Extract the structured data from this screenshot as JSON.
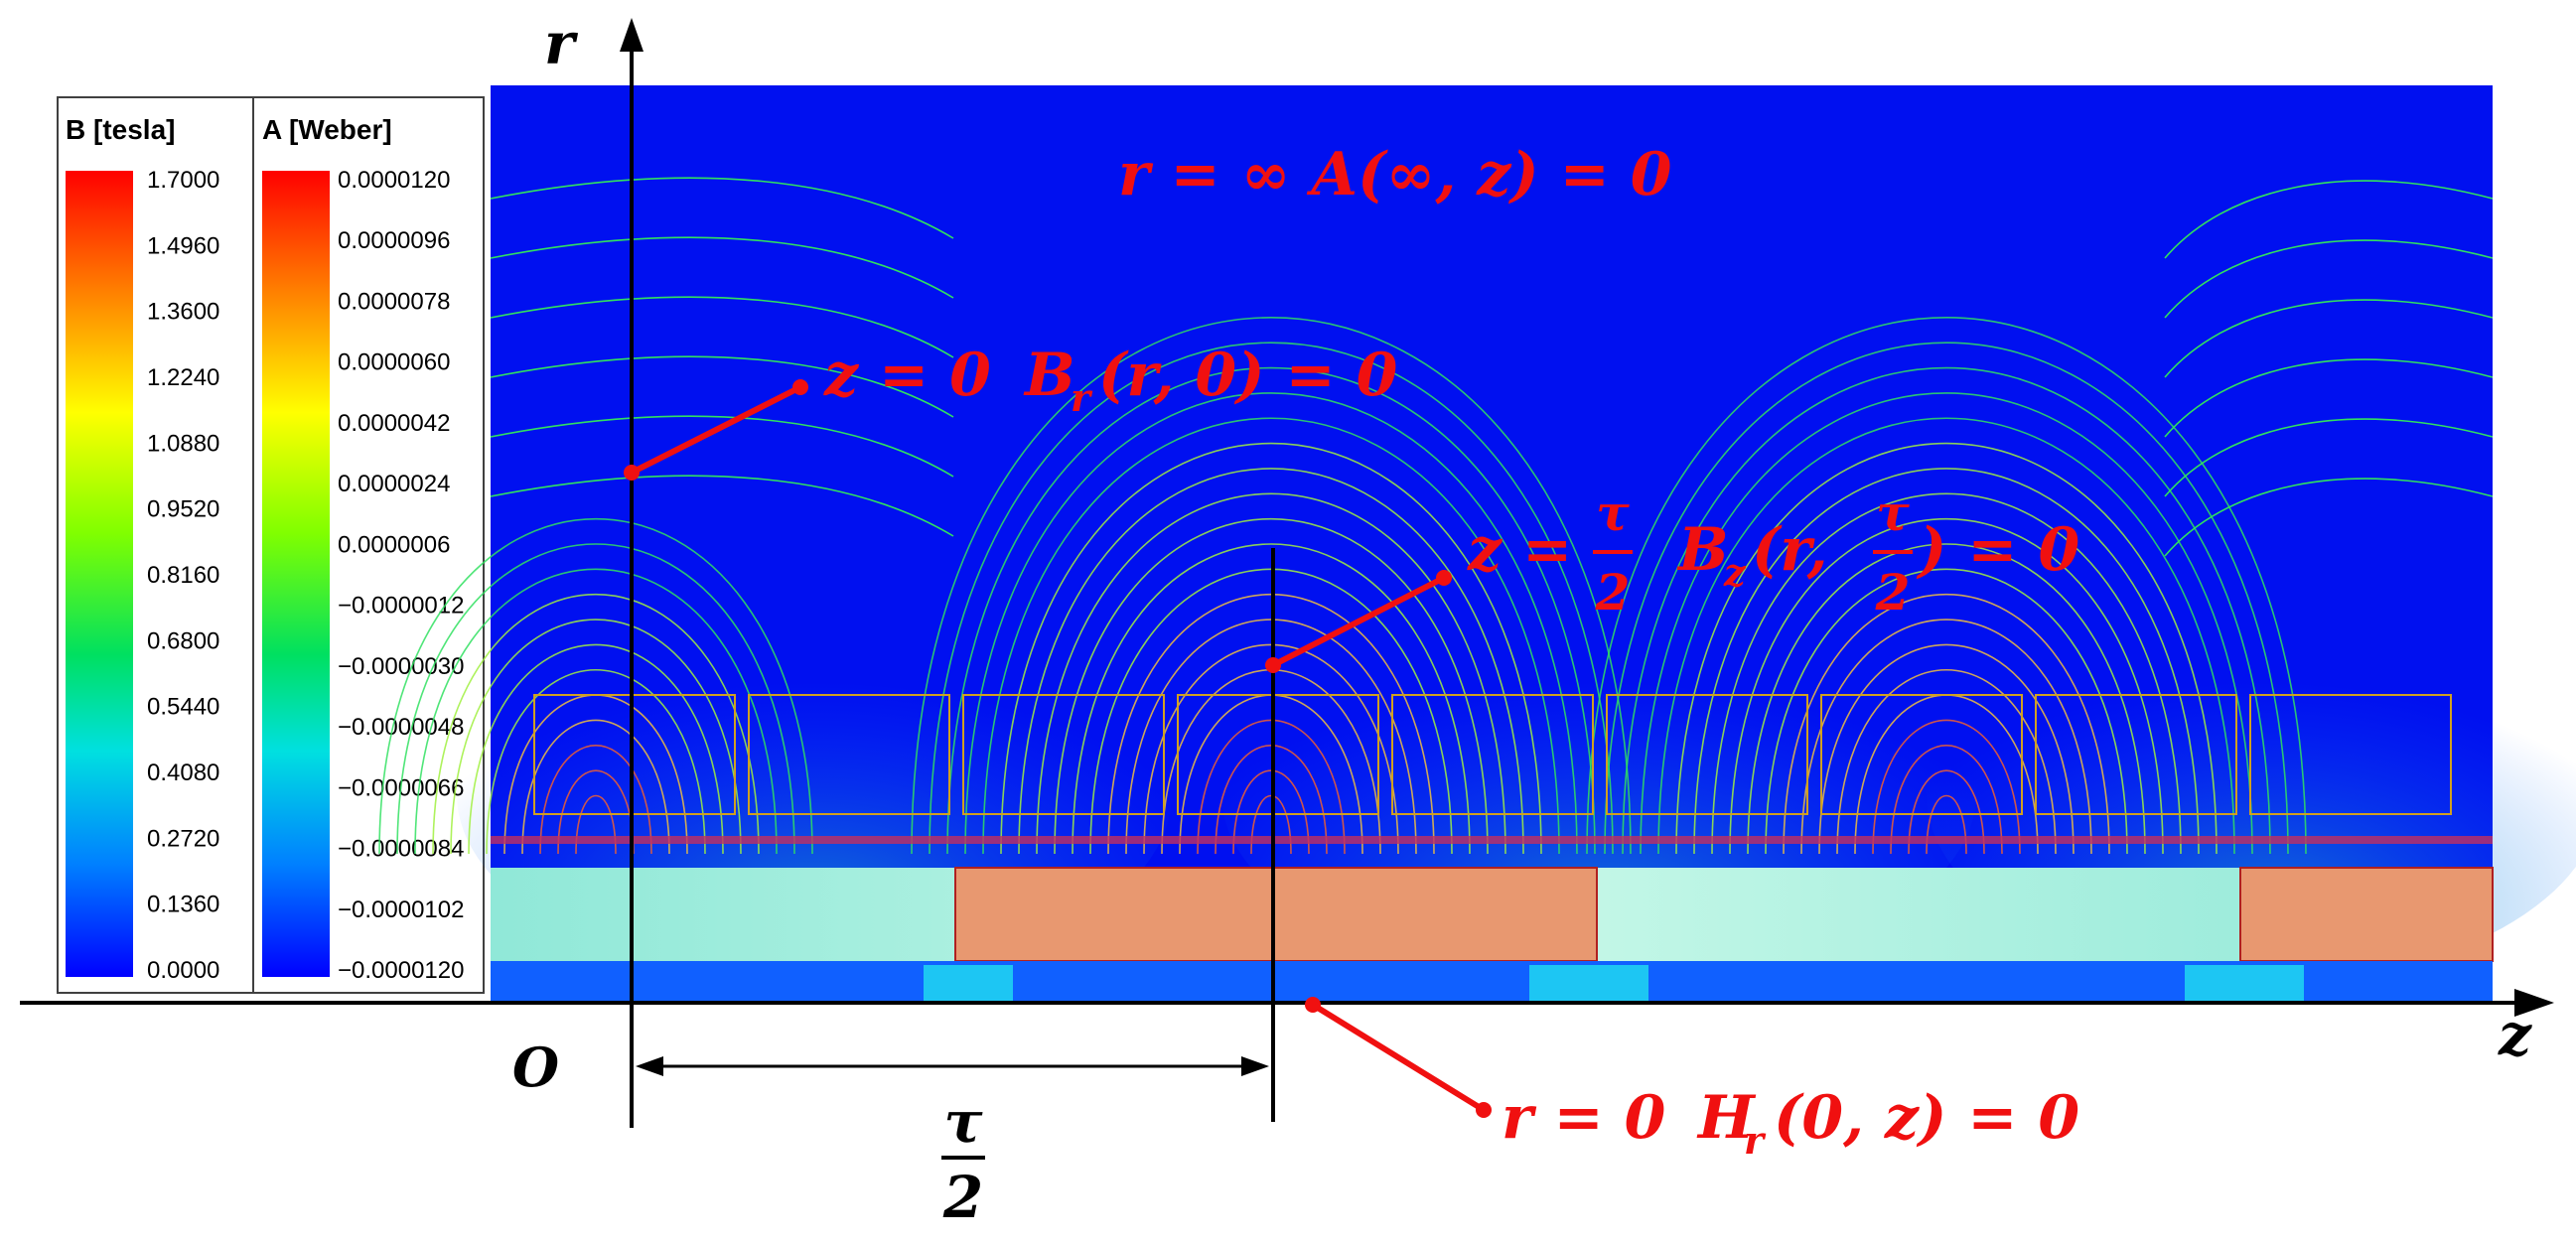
{
  "colors": {
    "background_field": "#0010f0",
    "annotation": "#f01010",
    "axis": "#000000",
    "field_line_outer": "#30e060",
    "coil_outline": "#d0a020",
    "magnet_fill": "#e89870",
    "magnet_outline": "#b02020",
    "yoke_fill": "#a8f0e0"
  },
  "legend_b": {
    "title": "B [tesla]",
    "ticks": [
      "1.7000",
      "1.4960",
      "1.3600",
      "1.2240",
      "1.0880",
      "0.9520",
      "0.8160",
      "0.6800",
      "0.5440",
      "0.4080",
      "0.2720",
      "0.1360",
      "0.0000"
    ]
  },
  "legend_a": {
    "title": "A [Weber]",
    "ticks": [
      "0.0000120",
      "0.0000096",
      "0.0000078",
      "0.0000060",
      "0.0000042",
      "0.0000024",
      "0.0000006",
      "−0.0000012",
      "−0.0000030",
      "−0.0000048",
      "−0.0000066",
      "−0.0000084",
      "−0.0000102",
      "−0.0000120"
    ]
  },
  "axes": {
    "r_label": "r",
    "z_label": "z",
    "origin_label": "O",
    "tau_num": "τ",
    "tau_den": "2"
  },
  "annotations": {
    "top_boundary": "r = ∞  A(∞, z) = 0",
    "left_boundary_lhs": "z = 0",
    "left_boundary_rhs": "B",
    "left_boundary_sub": "r",
    "left_boundary_args": "(r, 0) = 0",
    "mid_boundary_lhs": "z =",
    "mid_tau": "τ",
    "mid_two": "2",
    "mid_b": "B",
    "mid_sub": "z",
    "mid_args_open": "(r,",
    "mid_args_close": ") = 0",
    "bottom_boundary_lhs": "r = 0",
    "bottom_boundary_h": "H",
    "bottom_boundary_sub": "r",
    "bottom_boundary_args": "(0, z) = 0"
  }
}
